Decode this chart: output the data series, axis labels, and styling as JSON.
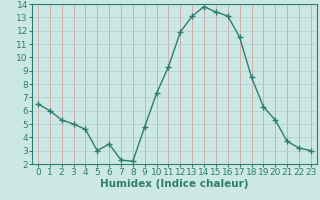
{
  "x": [
    0,
    1,
    2,
    3,
    4,
    5,
    6,
    7,
    8,
    9,
    10,
    11,
    12,
    13,
    14,
    15,
    16,
    17,
    18,
    19,
    20,
    21,
    22,
    23
  ],
  "y": [
    6.5,
    6.0,
    5.3,
    5.0,
    4.6,
    3.0,
    3.5,
    2.3,
    2.2,
    4.8,
    7.3,
    9.3,
    11.9,
    13.1,
    13.8,
    13.4,
    13.1,
    11.5,
    8.5,
    6.3,
    5.3,
    3.7,
    3.2,
    3.0
  ],
  "line_color": "#2e7d6e",
  "marker": "+",
  "marker_size": 4,
  "bg_color": "#cce8e4",
  "grid_color_v": "#cc9999",
  "grid_color_h": "#bbccca",
  "xlabel": "Humidex (Indice chaleur)",
  "xlim": [
    -0.5,
    23.5
  ],
  "ylim": [
    2,
    14
  ],
  "yticks": [
    2,
    3,
    4,
    5,
    6,
    7,
    8,
    9,
    10,
    11,
    12,
    13,
    14
  ],
  "xticks": [
    0,
    1,
    2,
    3,
    4,
    5,
    6,
    7,
    8,
    9,
    10,
    11,
    12,
    13,
    14,
    15,
    16,
    17,
    18,
    19,
    20,
    21,
    22,
    23
  ],
  "tick_label_fontsize": 6.5,
  "xlabel_fontsize": 7.5
}
